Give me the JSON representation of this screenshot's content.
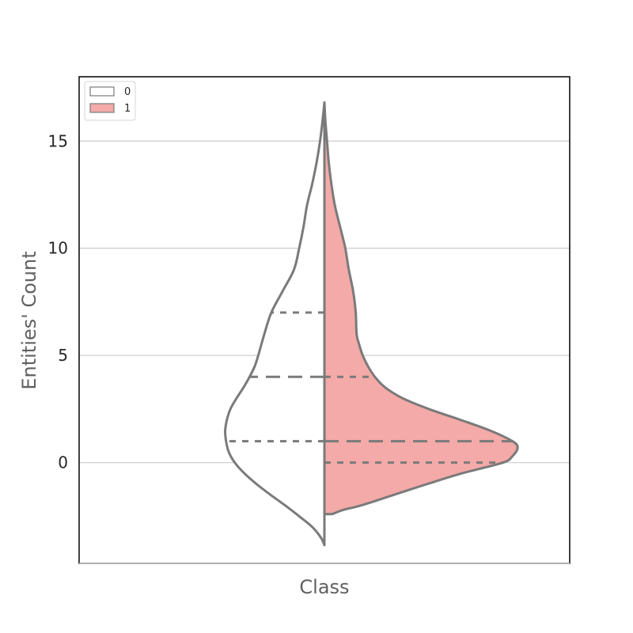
{
  "chart_data": {
    "type": "violin",
    "split": true,
    "xlabel": "Class",
    "ylabel": "Entities' Count",
    "ylim": [
      -4.7,
      18
    ],
    "yticks": [
      0,
      5,
      10,
      15
    ],
    "grid": true,
    "legend_placement": "top-left",
    "series": [
      {
        "name": "0",
        "side": "left",
        "fill": "#ffffff",
        "quartiles": {
          "q1": 1,
          "median": 4,
          "q3": 7
        },
        "range": [
          -3.85,
          16.8
        ],
        "density": [
          [
            -3.85,
            0.0
          ],
          [
            -3.5,
            0.04
          ],
          [
            -3.0,
            0.14
          ],
          [
            -2.5,
            0.29
          ],
          [
            -2.0,
            0.45
          ],
          [
            -1.5,
            0.62
          ],
          [
            -1.0,
            0.78
          ],
          [
            -0.5,
            0.92
          ],
          [
            0.0,
            1.03
          ],
          [
            0.5,
            1.1
          ],
          [
            1.0,
            1.13
          ],
          [
            1.5,
            1.14
          ],
          [
            2.0,
            1.12
          ],
          [
            2.5,
            1.08
          ],
          [
            3.0,
            1.01
          ],
          [
            3.5,
            0.93
          ],
          [
            4.0,
            0.86
          ],
          [
            4.5,
            0.8
          ],
          [
            5.0,
            0.76
          ],
          [
            6.0,
            0.69
          ],
          [
            7.0,
            0.61
          ],
          [
            8.0,
            0.48
          ],
          [
            9.0,
            0.35
          ],
          [
            10.0,
            0.29
          ],
          [
            11.0,
            0.24
          ],
          [
            12.0,
            0.2
          ],
          [
            13.0,
            0.14
          ],
          [
            14.0,
            0.09
          ],
          [
            15.0,
            0.05
          ],
          [
            16.0,
            0.02
          ],
          [
            16.8,
            0.0
          ]
        ]
      },
      {
        "name": "1",
        "side": "right",
        "fill": "#f4aaa8",
        "quartiles": {
          "q1": 0,
          "median": 1,
          "q3": 4
        },
        "range": [
          -2.4,
          16.8
        ],
        "density": [
          [
            -2.4,
            0.09
          ],
          [
            -2.2,
            0.22
          ],
          [
            -2.0,
            0.42
          ],
          [
            -1.5,
            0.8
          ],
          [
            -1.0,
            1.18
          ],
          [
            -0.5,
            1.58
          ],
          [
            0.0,
            2.05
          ],
          [
            0.3,
            2.16
          ],
          [
            0.7,
            2.22
          ],
          [
            1.0,
            2.16
          ],
          [
            1.5,
            1.9
          ],
          [
            2.0,
            1.56
          ],
          [
            2.5,
            1.2
          ],
          [
            3.0,
            0.9
          ],
          [
            3.5,
            0.7
          ],
          [
            4.0,
            0.58
          ],
          [
            4.5,
            0.5
          ],
          [
            5.0,
            0.44
          ],
          [
            5.5,
            0.4
          ],
          [
            6.0,
            0.37
          ],
          [
            7.0,
            0.36
          ],
          [
            8.0,
            0.33
          ],
          [
            9.0,
            0.28
          ],
          [
            10.0,
            0.24
          ],
          [
            11.0,
            0.18
          ],
          [
            12.0,
            0.12
          ],
          [
            13.0,
            0.08
          ],
          [
            14.0,
            0.05
          ],
          [
            15.0,
            0.03
          ],
          [
            16.0,
            0.01
          ],
          [
            16.8,
            0.0
          ]
        ]
      }
    ]
  }
}
